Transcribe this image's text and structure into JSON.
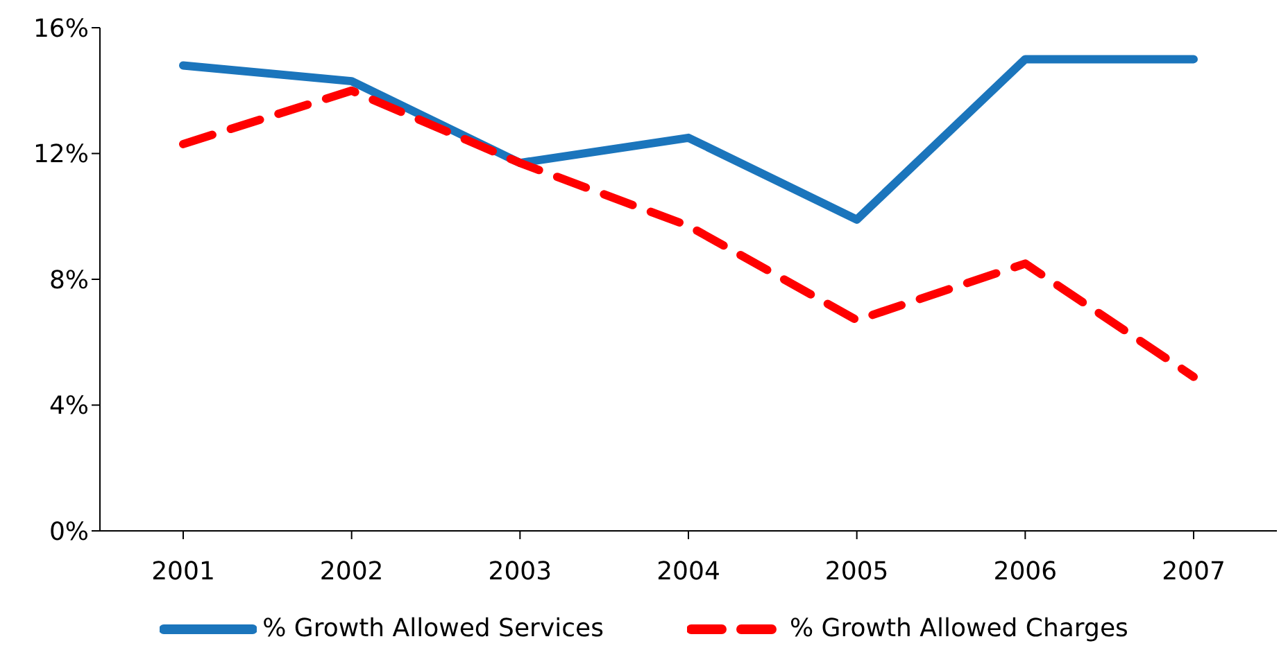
{
  "chart_data": {
    "type": "line",
    "categories": [
      "2001",
      "2002",
      "2003",
      "2004",
      "2005",
      "2006",
      "2007"
    ],
    "series": [
      {
        "name": "% Growth Allowed Services",
        "color": "#1b75bc",
        "line_style": "solid",
        "values": [
          14.8,
          14.3,
          11.7,
          12.5,
          9.9,
          15.0,
          15.0
        ]
      },
      {
        "name": "% Growth Allowed Charges",
        "color": "#ff0000",
        "line_style": "dashed",
        "values": [
          12.3,
          14.0,
          11.7,
          9.7,
          6.7,
          8.5,
          4.9
        ]
      }
    ],
    "ylim": [
      0,
      16
    ],
    "yticks": [
      {
        "value": 0,
        "label": "0%"
      },
      {
        "value": 4,
        "label": "4%"
      },
      {
        "value": 8,
        "label": "8%"
      },
      {
        "value": 12,
        "label": "12%"
      },
      {
        "value": 16,
        "label": "16%"
      }
    ],
    "grid": false,
    "legend": "bottom",
    "marker": "none"
  }
}
